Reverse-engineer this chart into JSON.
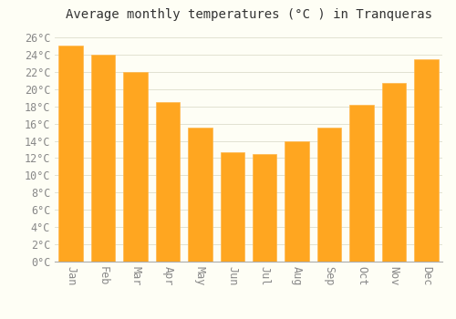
{
  "title": "Average monthly temperatures (°C ) in Tranqueras",
  "months": [
    "Jan",
    "Feb",
    "Mar",
    "Apr",
    "May",
    "Jun",
    "Jul",
    "Aug",
    "Sep",
    "Oct",
    "Nov",
    "Dec"
  ],
  "values": [
    25.0,
    24.0,
    22.0,
    18.5,
    15.5,
    12.7,
    12.5,
    14.0,
    15.5,
    18.2,
    20.7,
    23.5
  ],
  "bar_color": "#FFA620",
  "bar_edge_color": "#FFB84D",
  "background_color": "#FEFEF5",
  "grid_color": "#DDDDCC",
  "ylim": [
    0,
    27
  ],
  "ytick_max": 26,
  "ytick_step": 2,
  "title_fontsize": 10,
  "tick_fontsize": 8.5,
  "font_family": "monospace",
  "bar_width": 0.75
}
